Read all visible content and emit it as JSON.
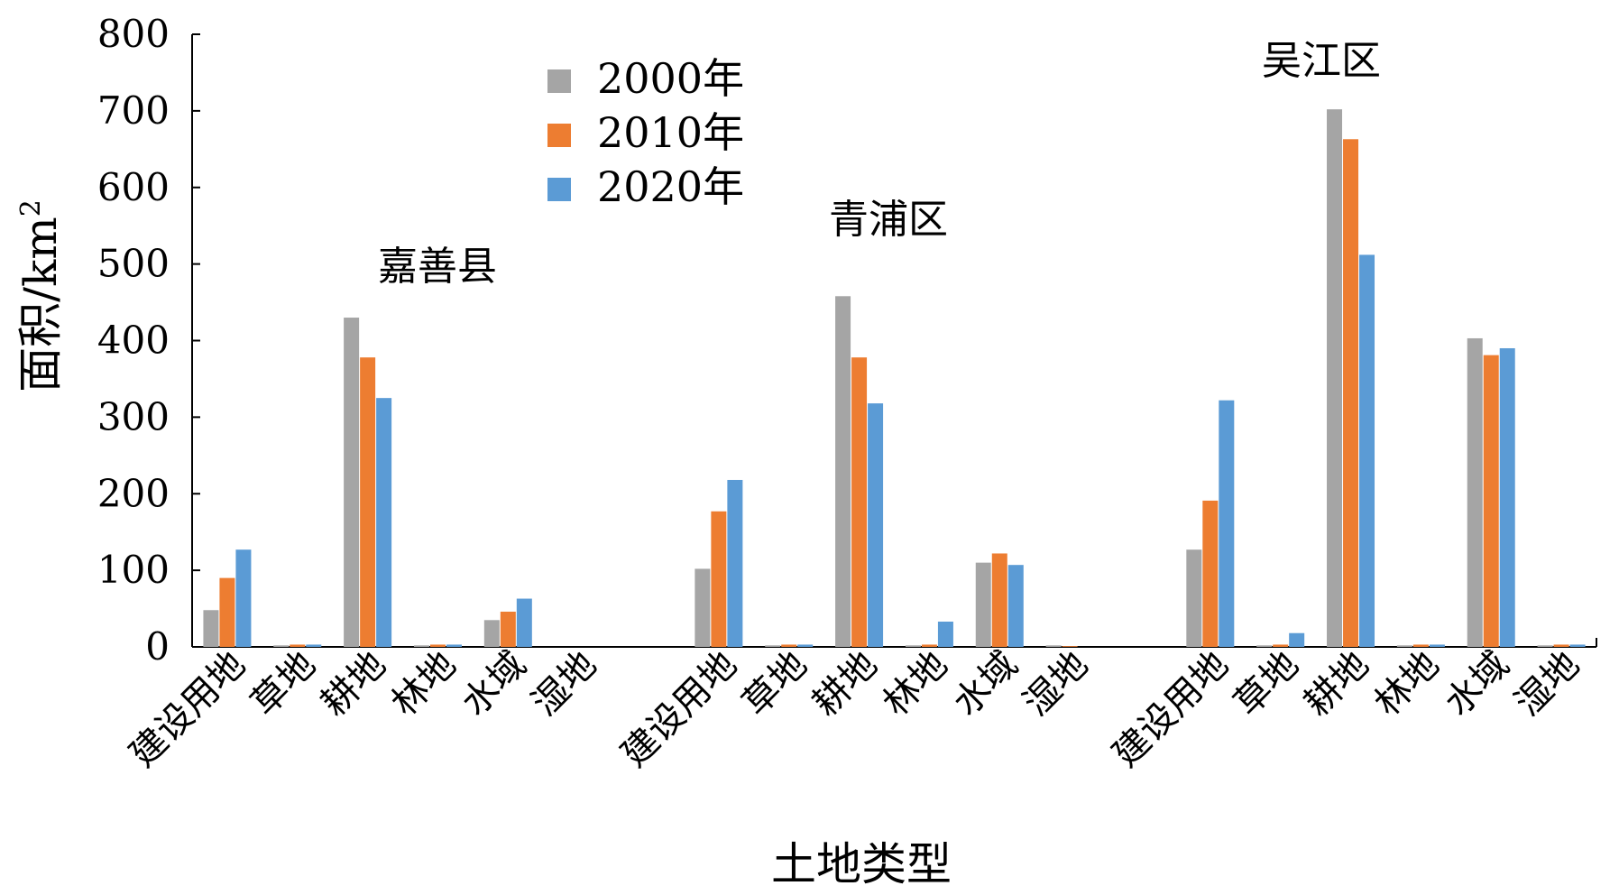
{
  "chart_data": {
    "type": "bar",
    "ylabel": "面积/km",
    "ylabel_superscript": "2",
    "xlabel": "土地类型",
    "ylim": [
      0,
      800
    ],
    "yticks": [
      0,
      100,
      200,
      300,
      400,
      500,
      600,
      700,
      800
    ],
    "grid": false,
    "legend_position": "top-center",
    "colors": [
      "#A5A5A5",
      "#ED7D31",
      "#5B9BD5"
    ],
    "groups": [
      {
        "name": "嘉善县",
        "categories": [
          "建设用地",
          "草地",
          "耕地",
          "林地",
          "水域",
          "湿地"
        ],
        "series": [
          {
            "name": "2000年",
            "values": [
              48,
              2,
              430,
              2,
              35,
              0
            ]
          },
          {
            "name": "2010年",
            "values": [
              90,
              3,
              378,
              3,
              46,
              0
            ]
          },
          {
            "name": "2020年",
            "values": [
              127,
              3,
              325,
              3,
              63,
              0
            ]
          }
        ]
      },
      {
        "name": "青浦区",
        "categories": [
          "建设用地",
          "草地",
          "耕地",
          "林地",
          "水域",
          "湿地"
        ],
        "series": [
          {
            "name": "2000年",
            "values": [
              102,
              2,
              458,
              2,
              110,
              2
            ]
          },
          {
            "name": "2010年",
            "values": [
              177,
              3,
              378,
              3,
              122,
              1
            ]
          },
          {
            "name": "2020年",
            "values": [
              218,
              3,
              318,
              33,
              107,
              0
            ]
          }
        ]
      },
      {
        "name": "吴江区",
        "categories": [
          "建设用地",
          "草地",
          "耕地",
          "林地",
          "水域",
          "湿地"
        ],
        "series": [
          {
            "name": "2000年",
            "values": [
              127,
              2,
              702,
              2,
              403,
              2
            ]
          },
          {
            "name": "2010年",
            "values": [
              191,
              3,
              663,
              3,
              381,
              3
            ]
          },
          {
            "name": "2020年",
            "values": [
              322,
              18,
              512,
              3,
              390,
              3
            ]
          }
        ]
      }
    ]
  }
}
